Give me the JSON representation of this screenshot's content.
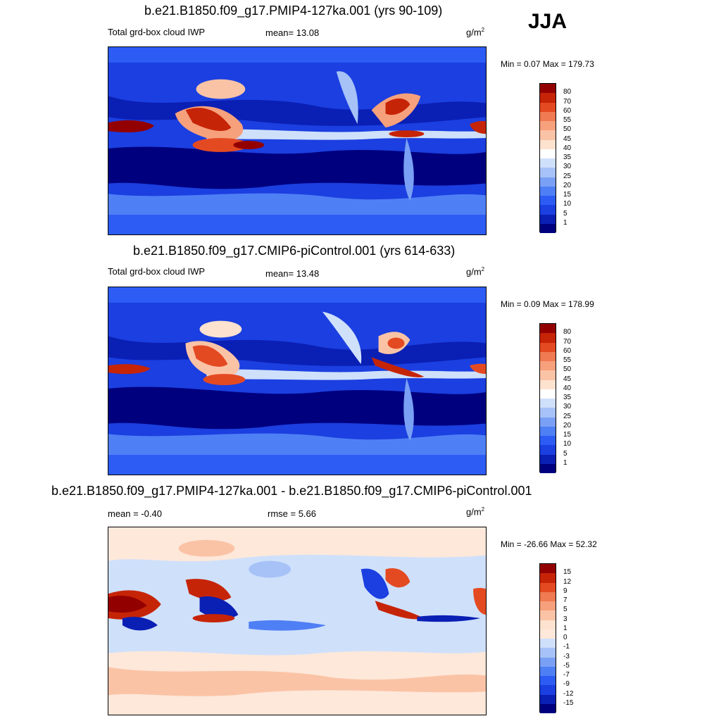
{
  "season": "JJA",
  "panels": [
    {
      "title": "b.e21.B1850.f09_g17.PMIP4-127ka.001 (yrs 90-109)",
      "left_label": "Total grd-box cloud IWP",
      "center_label": "mean=  13.08",
      "units_base": "g/m",
      "units_exp": "2",
      "minmax": "Min =   0.07 Max = 179.73"
    },
    {
      "title": "b.e21.B1850.f09_g17.CMIP6-piControl.001 (yrs 614-633)",
      "left_label": "Total grd-box cloud IWP",
      "center_label": "mean=  13.48",
      "units_base": "g/m",
      "units_exp": "2",
      "minmax": "Min =   0.09 Max = 178.99"
    },
    {
      "title": "b.e21.B1850.f09_g17.PMIP4-127ka.001 - b.e21.B1850.f09_g17.CMIP6-piControl.001",
      "left_label": "mean =  -0.40",
      "center_label": "rmse =   5.66",
      "units_base": "g/m",
      "units_exp": "2",
      "minmax": "Min = -26.66 Max =  52.32"
    }
  ],
  "chart_data": [
    {
      "type": "heatmap",
      "title": "b.e21.B1850.f09_g17.PMIP4-127ka.001 (yrs 90-109)",
      "variable": "Total grd-box cloud IWP",
      "units": "g/m2",
      "mean": 13.08,
      "min": 0.07,
      "max": 179.73,
      "colorbar_levels": [
        1,
        5,
        10,
        15,
        20,
        25,
        30,
        35,
        40,
        45,
        50,
        55,
        60,
        70,
        80
      ],
      "colorbar_colors": [
        "#00007f",
        "#0a1fb4",
        "#1b3fe0",
        "#2d5cf5",
        "#4f7ff5",
        "#7aa0f5",
        "#a6c2f7",
        "#cfe0fb",
        "#ffffff",
        "#fde2cf",
        "#fbc3a6",
        "#f6a07c",
        "#f07a52",
        "#e44a22",
        "#c62407",
        "#930000"
      ]
    },
    {
      "type": "heatmap",
      "title": "b.e21.B1850.f09_g17.CMIP6-piControl.001 (yrs 614-633)",
      "variable": "Total grd-box cloud IWP",
      "units": "g/m2",
      "mean": 13.48,
      "min": 0.09,
      "max": 178.99,
      "colorbar_levels": [
        1,
        5,
        10,
        15,
        20,
        25,
        30,
        35,
        40,
        45,
        50,
        55,
        60,
        70,
        80
      ],
      "colorbar_colors": [
        "#00007f",
        "#0a1fb4",
        "#1b3fe0",
        "#2d5cf5",
        "#4f7ff5",
        "#7aa0f5",
        "#a6c2f7",
        "#cfe0fb",
        "#ffffff",
        "#fde2cf",
        "#fbc3a6",
        "#f6a07c",
        "#f07a52",
        "#e44a22",
        "#c62407",
        "#930000"
      ]
    },
    {
      "type": "heatmap",
      "title": "b.e21.B1850.f09_g17.PMIP4-127ka.001 - b.e21.B1850.f09_g17.CMIP6-piControl.001",
      "units": "g/m2",
      "mean": -0.4,
      "rmse": 5.66,
      "min": -26.66,
      "max": 52.32,
      "colorbar_levels": [
        -15,
        -12,
        -9,
        -7,
        -5,
        -3,
        -1,
        0,
        1,
        3,
        5,
        7,
        9,
        12,
        15
      ],
      "colorbar_colors": [
        "#00007f",
        "#0a1fb4",
        "#1b3fe0",
        "#2d5cf5",
        "#4f7ff5",
        "#7aa0f5",
        "#a6c2f7",
        "#cfe0fb",
        "#fde8da",
        "#fde2cf",
        "#fbc3a6",
        "#f6a07c",
        "#f07a52",
        "#e44a22",
        "#c62407",
        "#930000"
      ]
    }
  ]
}
